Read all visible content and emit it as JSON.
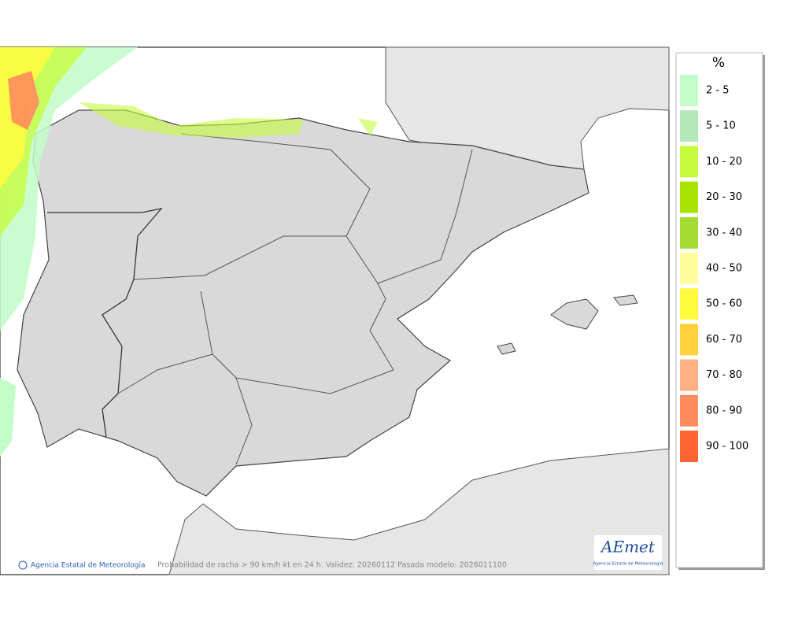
{
  "legend": {
    "title": "%",
    "items": [
      {
        "label": "2 - 5",
        "color": "#c2fcc8"
      },
      {
        "label": "5 - 10",
        "color": "#b2e8b8"
      },
      {
        "label": "10 - 20",
        "color": "#c4fc3c"
      },
      {
        "label": "20 - 30",
        "color": "#a8e400"
      },
      {
        "label": "30 - 40",
        "color": "#a4dc34"
      },
      {
        "label": "40 - 50",
        "color": "#fffc9c"
      },
      {
        "label": "50 - 60",
        "color": "#fffc40"
      },
      {
        "label": "60 - 70",
        "color": "#ffd23c"
      },
      {
        "label": "70 - 80",
        "color": "#ffb084"
      },
      {
        "label": "80 - 90",
        "color": "#ff8c5c"
      },
      {
        "label": "90 - 100",
        "color": "#ff6434"
      }
    ]
  },
  "footer": {
    "credit": "Agencia Estatal de Meteorología",
    "caption": "Probabilidad de racha > 90 km/h kt en 24 h. Validez: 20260112 Pasada modelo: 2026011100"
  },
  "logo": {
    "text": "AEmet",
    "subtitle": "Agencia Estatal de Meteorología"
  }
}
